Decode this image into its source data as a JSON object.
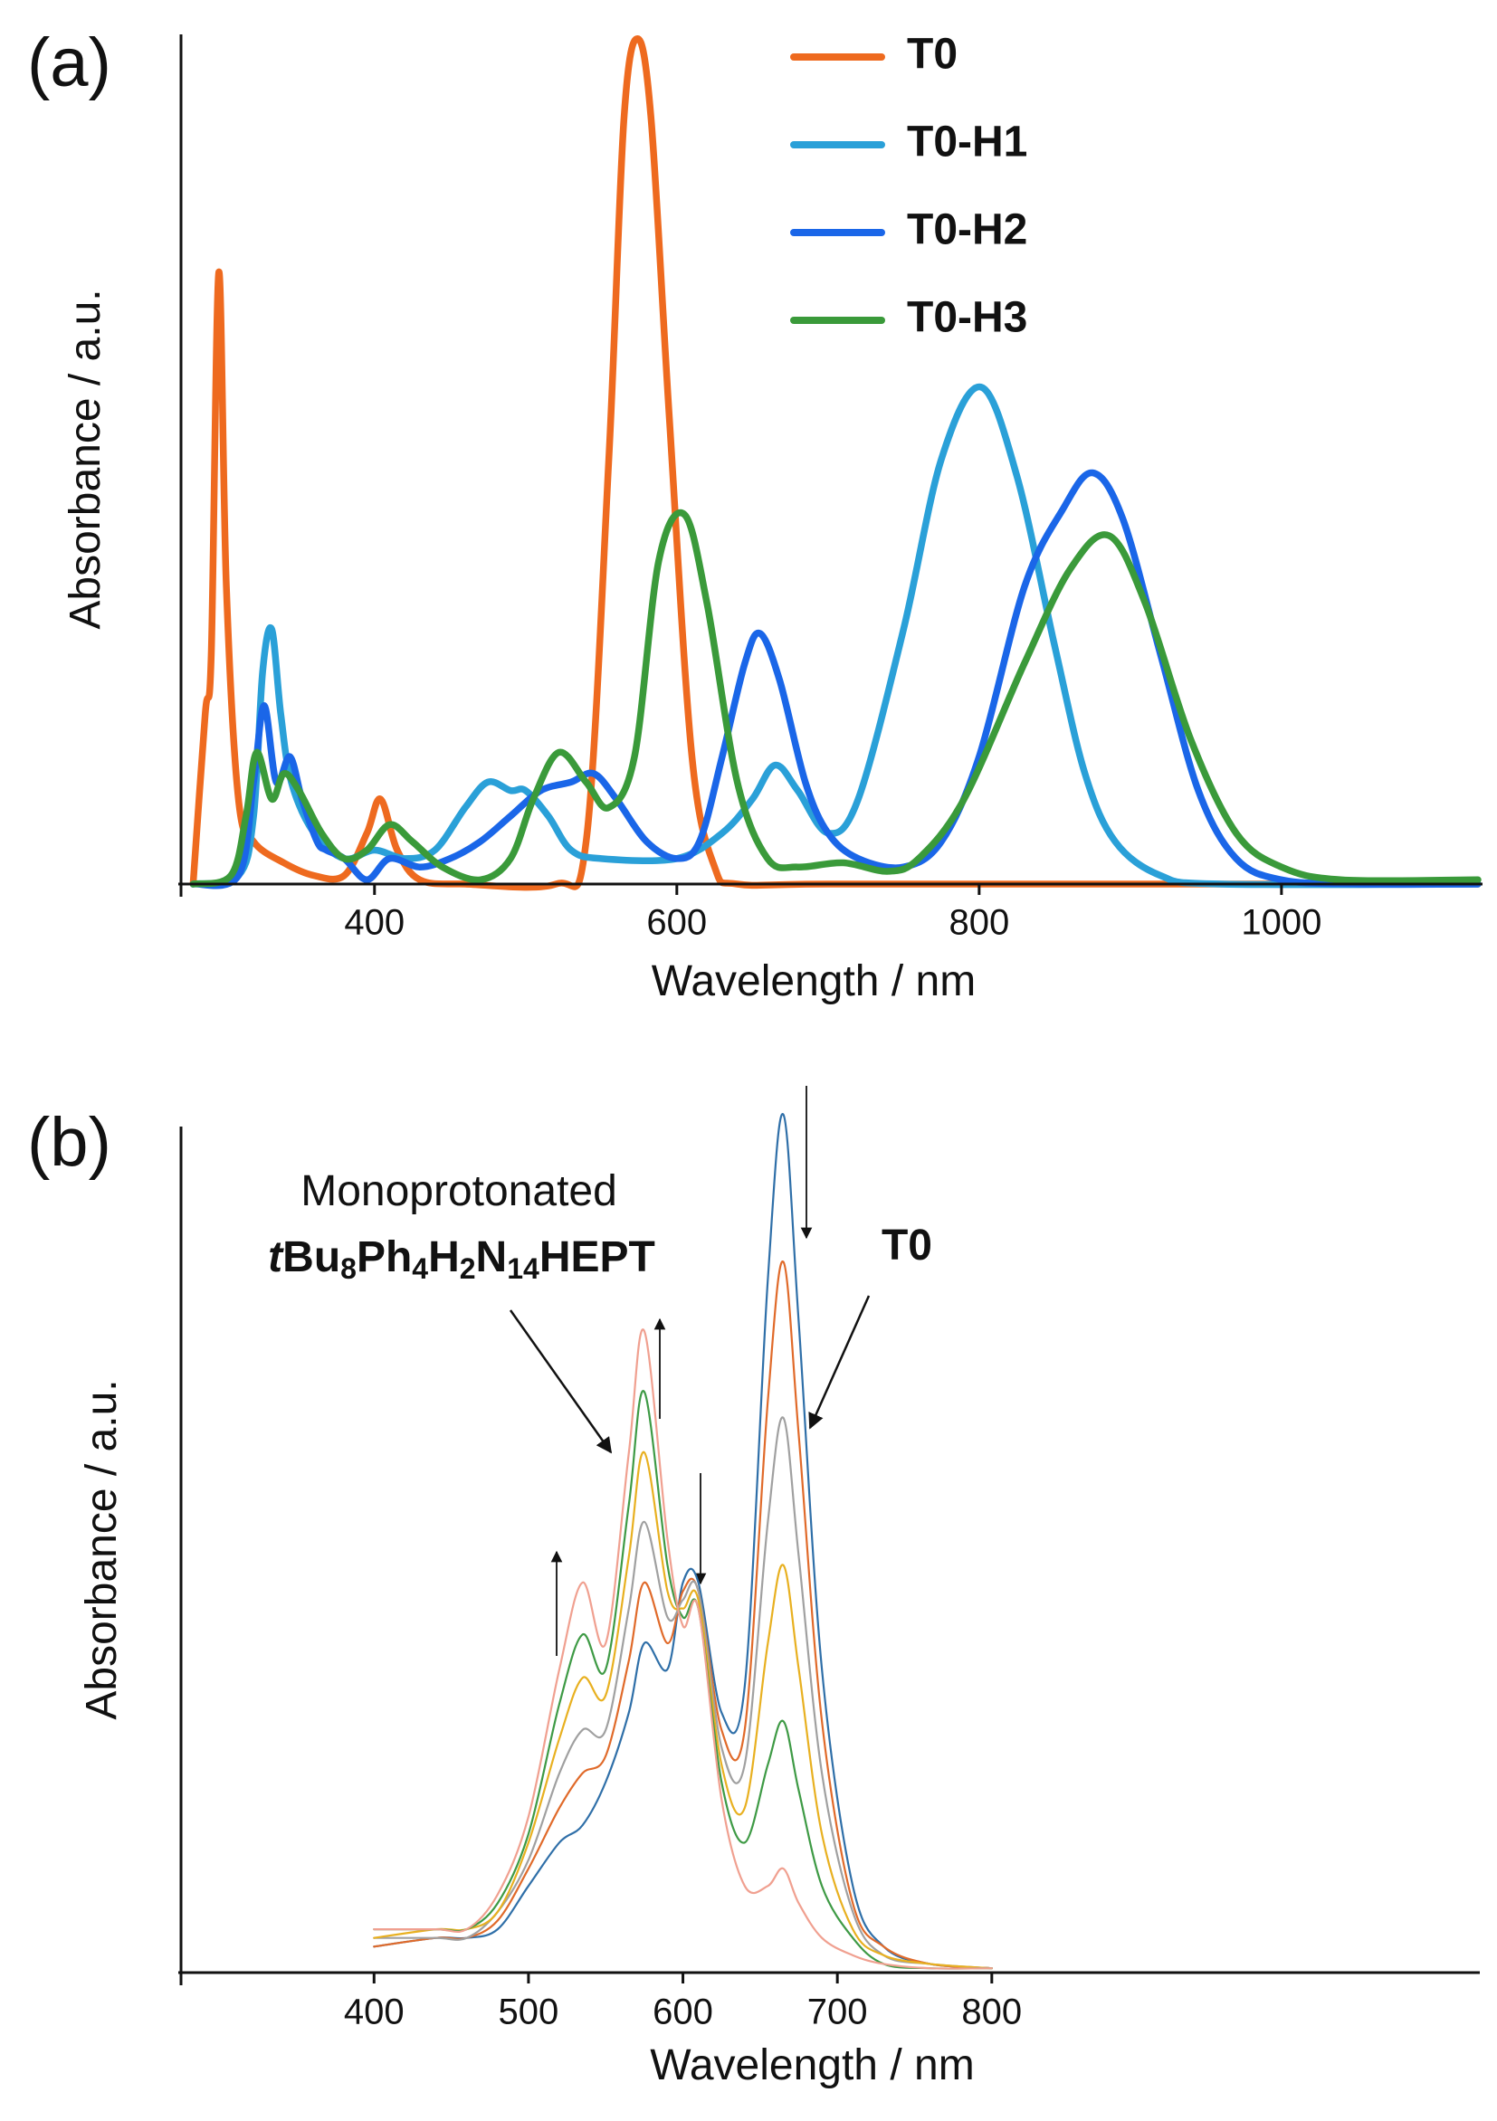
{
  "chart_data": [
    {
      "type": "line",
      "panel_label": "(a)",
      "xlabel": "Wavelength / nm",
      "ylabel": "Absorbance / a.u.",
      "xlim": [
        272,
        1133
      ],
      "ylim": [
        0,
        1
      ],
      "xticks": [
        400,
        600,
        800,
        1000
      ],
      "legend": "upper right",
      "series": [
        {
          "name": "T0",
          "color": "#ee6a1f",
          "x": [
            280,
            288,
            292,
            297,
            302,
            310,
            320,
            340,
            360,
            380,
            395,
            404,
            415,
            430,
            460,
            520,
            540,
            555,
            565,
            574,
            583,
            595,
            610,
            625,
            640,
            700,
            900,
            1130
          ],
          "values": [
            0,
            0.2,
            0.27,
            0.72,
            0.35,
            0.1,
            0.05,
            0.025,
            0.01,
            0.01,
            0.06,
            0.1,
            0.04,
            0.005,
            0,
            0,
            0.05,
            0.5,
            0.9,
            0.995,
            0.9,
            0.55,
            0.15,
            0.02,
            0,
            0,
            0,
            0
          ]
        },
        {
          "name": "T0-H1",
          "color": "#2aa0d8",
          "x": [
            280,
            310,
            320,
            326,
            332,
            338,
            345,
            360,
            380,
            400,
            420,
            440,
            460,
            475,
            490,
            500,
            515,
            530,
            550,
            600,
            630,
            650,
            665,
            680,
            700,
            720,
            750,
            775,
            801,
            825,
            850,
            870,
            890,
            920,
            960,
            1130
          ],
          "values": [
            0,
            0.01,
            0.08,
            0.25,
            0.3,
            0.2,
            0.12,
            0.06,
            0.03,
            0.04,
            0.03,
            0.04,
            0.09,
            0.12,
            0.11,
            0.11,
            0.08,
            0.04,
            0.03,
            0.03,
            0.06,
            0.1,
            0.14,
            0.11,
            0.06,
            0.1,
            0.3,
            0.5,
            0.585,
            0.48,
            0.28,
            0.13,
            0.05,
            0.01,
            0,
            0
          ]
        },
        {
          "name": "T0-H2",
          "color": "#1a66e8",
          "x": [
            280,
            310,
            320,
            327,
            335,
            344,
            352,
            362,
            368,
            380,
            395,
            410,
            430,
            450,
            470,
            490,
            510,
            530,
            545,
            560,
            580,
            600,
            615,
            630,
            645,
            655,
            668,
            685,
            700,
            720,
            750,
            775,
            800,
            830,
            855,
            875,
            895,
            920,
            945,
            970,
            1000,
            1050,
            1130
          ],
          "values": [
            0,
            0.01,
            0.12,
            0.21,
            0.12,
            0.15,
            0.1,
            0.05,
            0.04,
            0.03,
            0.005,
            0.03,
            0.02,
            0.03,
            0.05,
            0.08,
            0.11,
            0.12,
            0.13,
            0.1,
            0.05,
            0.03,
            0.05,
            0.15,
            0.26,
            0.295,
            0.24,
            0.12,
            0.06,
            0.03,
            0.02,
            0.05,
            0.15,
            0.35,
            0.44,
            0.484,
            0.43,
            0.27,
            0.11,
            0.03,
            0.005,
            0,
            0
          ]
        },
        {
          "name": "T0-H3",
          "color": "#3a9a3a",
          "x": [
            280,
            305,
            315,
            322,
            332,
            340,
            350,
            365,
            380,
            395,
            410,
            425,
            445,
            470,
            490,
            505,
            522,
            540,
            555,
            572,
            588,
            605,
            620,
            640,
            660,
            680,
            710,
            740,
            760,
            790,
            830,
            860,
            886,
            910,
            940,
            970,
            1000,
            1040,
            1130
          ],
          "values": [
            0,
            0.01,
            0.08,
            0.155,
            0.1,
            0.13,
            0.11,
            0.06,
            0.03,
            0.04,
            0.07,
            0.05,
            0.02,
            0.005,
            0.03,
            0.1,
            0.155,
            0.12,
            0.09,
            0.15,
            0.38,
            0.435,
            0.33,
            0.12,
            0.03,
            0.02,
            0.025,
            0.015,
            0.03,
            0.1,
            0.26,
            0.37,
            0.41,
            0.33,
            0.17,
            0.06,
            0.02,
            0.005,
            0.005
          ]
        }
      ]
    },
    {
      "type": "line",
      "panel_label": "(b)",
      "xlabel": "Wavelength / nm",
      "ylabel": "Absorbance / a.u.",
      "xlim": [
        275,
        1116
      ],
      "ylim": [
        0,
        1
      ],
      "xticks": [
        400,
        500,
        600,
        700,
        800
      ],
      "x": [
        400,
        440,
        460,
        480,
        500,
        520,
        535,
        550,
        565,
        575,
        590,
        600,
        610,
        625,
        640,
        655,
        665,
        675,
        690,
        710,
        730,
        760,
        800
      ],
      "series": [
        {
          "color": "#2f6fa8",
          "values": [
            0.03,
            0.04,
            0.04,
            0.05,
            0.1,
            0.15,
            0.17,
            0.22,
            0.3,
            0.38,
            0.35,
            0.45,
            0.45,
            0.3,
            0.33,
            0.8,
            0.99,
            0.75,
            0.35,
            0.1,
            0.03,
            0.01,
            0.005
          ]
        },
        {
          "color": "#e06a2a",
          "values": [
            0.03,
            0.04,
            0.04,
            0.06,
            0.12,
            0.19,
            0.23,
            0.25,
            0.36,
            0.45,
            0.38,
            0.44,
            0.44,
            0.28,
            0.28,
            0.66,
            0.82,
            0.62,
            0.29,
            0.08,
            0.03,
            0.01,
            0.005
          ]
        },
        {
          "color": "#a0a0a0",
          "values": [
            0.04,
            0.04,
            0.04,
            0.07,
            0.13,
            0.23,
            0.28,
            0.28,
            0.42,
            0.52,
            0.41,
            0.43,
            0.44,
            0.26,
            0.24,
            0.52,
            0.64,
            0.48,
            0.23,
            0.07,
            0.02,
            0.01,
            0.005
          ]
        },
        {
          "color": "#e8b020",
          "values": [
            0.04,
            0.05,
            0.05,
            0.07,
            0.15,
            0.27,
            0.34,
            0.32,
            0.48,
            0.6,
            0.44,
            0.42,
            0.43,
            0.24,
            0.19,
            0.38,
            0.47,
            0.35,
            0.16,
            0.05,
            0.02,
            0.01,
            0.005
          ]
        },
        {
          "color": "#3e9a45",
          "values": [
            0.05,
            0.05,
            0.05,
            0.08,
            0.16,
            0.31,
            0.39,
            0.35,
            0.54,
            0.67,
            0.47,
            0.41,
            0.42,
            0.22,
            0.15,
            0.24,
            0.29,
            0.21,
            0.1,
            0.04,
            0.01,
            0.005,
            0.005
          ]
        },
        {
          "color": "#f0a090",
          "values": [
            0.05,
            0.05,
            0.05,
            0.09,
            0.18,
            0.35,
            0.45,
            0.38,
            0.6,
            0.74,
            0.5,
            0.4,
            0.42,
            0.2,
            0.1,
            0.1,
            0.12,
            0.08,
            0.04,
            0.02,
            0.01,
            0.005,
            0.005
          ]
        }
      ],
      "annotations": {
        "text": "Monoprotonated",
        "formula": [
          "t",
          "Bu",
          "8",
          "Ph",
          "4",
          "H",
          "2",
          "N",
          "14",
          "HEPT"
        ],
        "label": "T0"
      }
    }
  ]
}
